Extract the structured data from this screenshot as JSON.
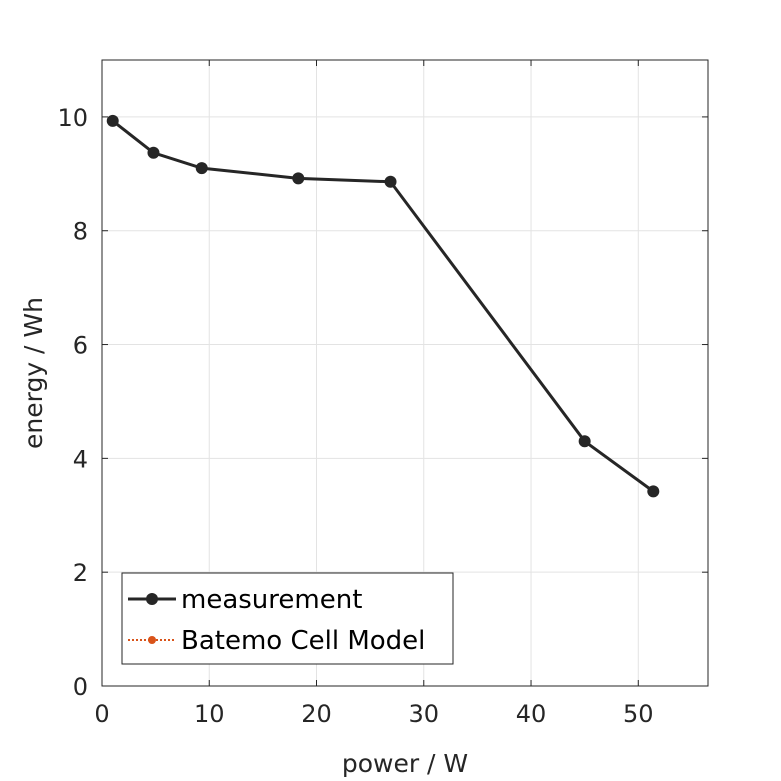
{
  "chart_data": {
    "type": "line",
    "title": "",
    "xlabel": "power / W",
    "ylabel": "energy / Wh",
    "xlim": [
      0,
      56.5
    ],
    "ylim": [
      0,
      11
    ],
    "xticks": [
      0,
      10,
      20,
      30,
      40,
      50
    ],
    "yticks": [
      0,
      2,
      4,
      6,
      8,
      10
    ],
    "grid": true,
    "legend_position": "bottom-left",
    "series": [
      {
        "name": "measurement",
        "color": "#262626",
        "line_style": "solid",
        "marker": "circle",
        "x": [
          1.0,
          4.8,
          9.3,
          18.3,
          26.9,
          45.0,
          51.4
        ],
        "y": [
          9.93,
          9.37,
          9.1,
          8.92,
          8.86,
          4.3,
          3.42
        ]
      },
      {
        "name": "Batemo Cell Model",
        "color": "#d95319",
        "line_style": "dotted",
        "marker": "circle",
        "x": [],
        "y": []
      }
    ]
  }
}
